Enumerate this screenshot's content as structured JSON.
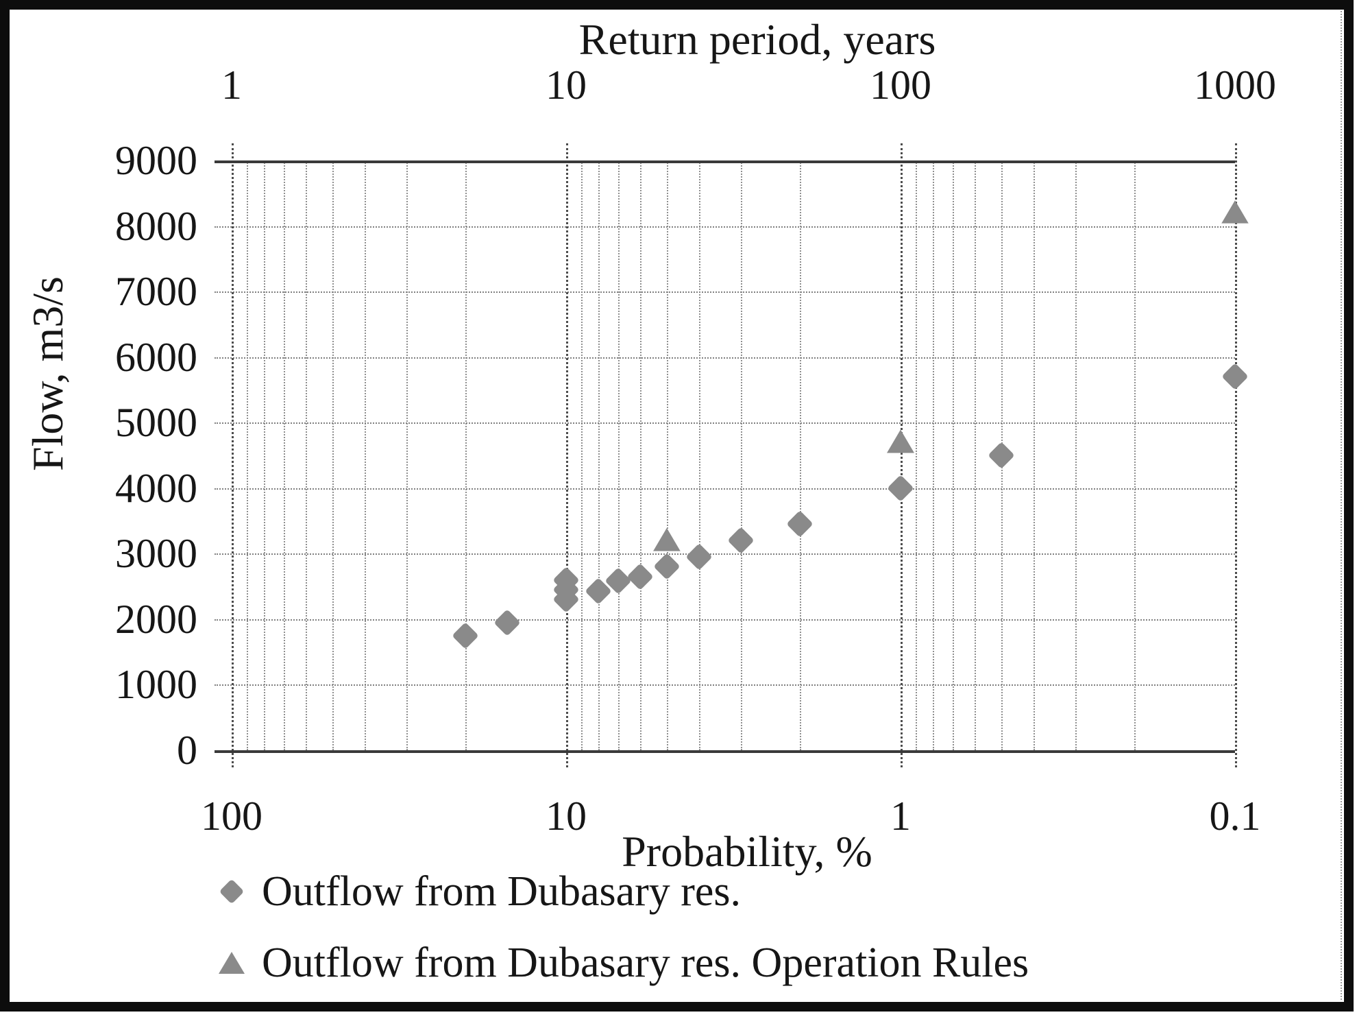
{
  "colors": {
    "marker": "#8a8a8a",
    "grid_minor": "#8f8f8f",
    "grid_major": "#4c4c4c",
    "axis_line": "#3a3a3a",
    "text": "#161616",
    "frame": "#0d0d0d",
    "background": "#ffffff"
  },
  "chart_data": {
    "type": "scatter",
    "x_scale": "log10-reversed",
    "grid": true,
    "legend_position": "bottom-left",
    "top_axis": {
      "title": "Return period, years",
      "tick_values": [
        1,
        10,
        100,
        1000
      ],
      "tick_labels": [
        "1",
        "10",
        "100",
        "1000"
      ]
    },
    "x_axis": {
      "title": "Probability, %",
      "range": [
        100,
        0.1
      ],
      "major_ticks": [
        100,
        10,
        1,
        0.1
      ],
      "major_tick_labels": [
        "100",
        "10",
        "1",
        "0.1"
      ],
      "minor_ticks": [
        90,
        80,
        70,
        60,
        50,
        40,
        30,
        20,
        9,
        8,
        7,
        6,
        5,
        4,
        3,
        2,
        0.9,
        0.8,
        0.7,
        0.6,
        0.5,
        0.4,
        0.3,
        0.2
      ]
    },
    "y_axis": {
      "title": "Flow, m3/s",
      "min": 0,
      "max": 9000,
      "tick_step": 1000,
      "ticks": [
        0,
        1000,
        2000,
        3000,
        4000,
        5000,
        6000,
        7000,
        8000,
        9000
      ]
    },
    "points_format": "[probability_pct, flow_m3s]",
    "series": [
      {
        "name": "Outflow from Dubasary res.",
        "marker": "diamond",
        "points": [
          [
            20,
            1750
          ],
          [
            15,
            1950
          ],
          [
            10,
            2600
          ],
          [
            10,
            2450
          ],
          [
            10,
            2300
          ],
          [
            8,
            2430
          ],
          [
            7,
            2580
          ],
          [
            6,
            2650
          ],
          [
            5,
            2800
          ],
          [
            4,
            2950
          ],
          [
            3,
            3200
          ],
          [
            2,
            3450
          ],
          [
            1,
            4000
          ],
          [
            0.5,
            4500
          ],
          [
            0.1,
            5700
          ]
        ]
      },
      {
        "name": "Outflow from Dubasary res. Operation Rules",
        "marker": "triangle",
        "points": [
          [
            5,
            3200
          ],
          [
            1,
            4700
          ],
          [
            0.1,
            8200
          ]
        ]
      }
    ]
  }
}
